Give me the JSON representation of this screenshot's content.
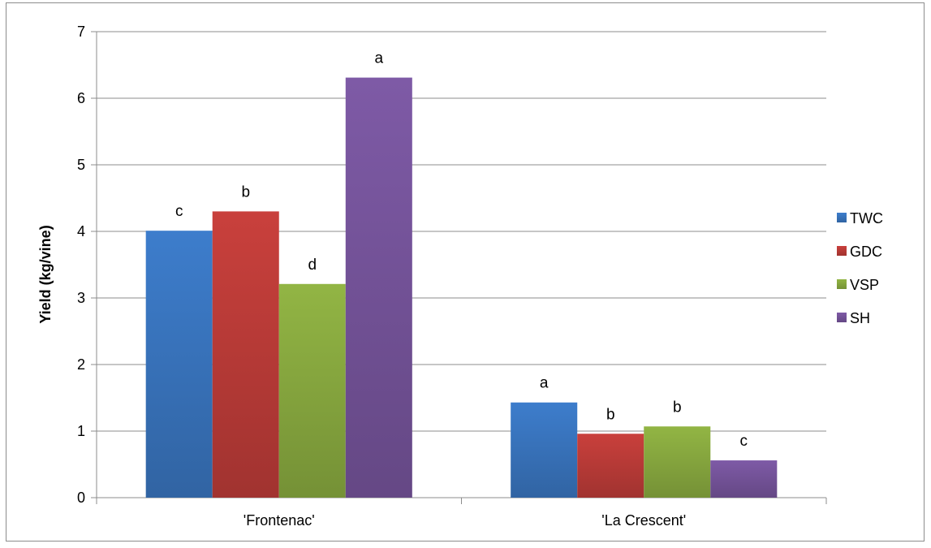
{
  "chart_data": {
    "type": "bar",
    "title": "",
    "xlabel": "",
    "ylabel": "Yield (kg/vine)",
    "ylim": [
      0,
      7
    ],
    "yticks": [
      0,
      1,
      2,
      3,
      4,
      5,
      6,
      7
    ],
    "grid": true,
    "legend_position": "right",
    "categories": [
      "'Frontenac'",
      "'La Crescent'"
    ],
    "series": [
      {
        "name": "TWC",
        "color": "#3d7dcc",
        "values": [
          4.01,
          1.43
        ],
        "labels": [
          "c",
          "a"
        ]
      },
      {
        "name": "GDC",
        "color": "#c9403c",
        "values": [
          4.3,
          0.96
        ],
        "labels": [
          "b",
          "b"
        ]
      },
      {
        "name": "VSP",
        "color": "#92b544",
        "values": [
          3.21,
          1.07
        ],
        "labels": [
          "d",
          "b"
        ]
      },
      {
        "name": "SH",
        "color": "#7e5aa6",
        "values": [
          6.31,
          0.56
        ],
        "labels": [
          "a",
          "c"
        ]
      }
    ]
  }
}
